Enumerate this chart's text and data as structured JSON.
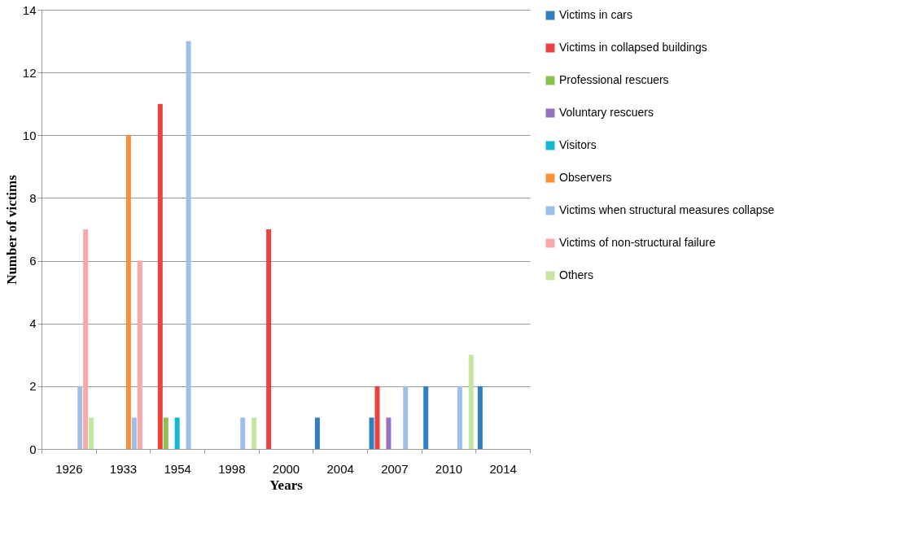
{
  "chart_data": {
    "type": "bar",
    "xlabel": "Years",
    "ylabel": "Number of victims",
    "categories": [
      "1926",
      "1933",
      "1954",
      "1998",
      "2000",
      "2004",
      "2007",
      "2010",
      "2014"
    ],
    "ylim": [
      0,
      14
    ],
    "yticks": [
      0,
      2,
      4,
      6,
      8,
      10,
      12,
      14
    ],
    "grid": "y",
    "legend": "right",
    "series": [
      {
        "name": "Victims in cars",
        "color": "#2f7fc1",
        "values": [
          0,
          0,
          0,
          0,
          0,
          1,
          1,
          2,
          2
        ]
      },
      {
        "name": "Victims in collapsed buildings",
        "color": "#e8433f",
        "values": [
          0,
          0,
          11,
          0,
          7,
          0,
          2,
          0,
          0
        ]
      },
      {
        "name": "Professional rescuers",
        "color": "#8cc152",
        "values": [
          0,
          0,
          1,
          0,
          0,
          0,
          0,
          0,
          0
        ]
      },
      {
        "name": "Voluntary rescuers",
        "color": "#9673c0",
        "values": [
          0,
          0,
          0,
          0,
          0,
          0,
          1,
          0,
          0
        ]
      },
      {
        "name": "Visitors",
        "color": "#17b6d4",
        "values": [
          0,
          0,
          1,
          0,
          0,
          0,
          0,
          0,
          0
        ]
      },
      {
        "name": "Observers",
        "color": "#f7923a",
        "values": [
          0,
          10,
          0,
          0,
          0,
          0,
          0,
          0,
          0
        ]
      },
      {
        "name": "Victims when structural measures collapse",
        "color": "#9ebfe8",
        "values": [
          2,
          1,
          13,
          1,
          0,
          0,
          2,
          2,
          0
        ]
      },
      {
        "name": "Victims of non-structural failure",
        "color": "#f7a8a8",
        "values": [
          7,
          6,
          0,
          0,
          0,
          0,
          0,
          0,
          0
        ]
      },
      {
        "name": "Others",
        "color": "#c6e5a0",
        "values": [
          1,
          0,
          0,
          1,
          0,
          0,
          0,
          3,
          0
        ]
      }
    ]
  }
}
